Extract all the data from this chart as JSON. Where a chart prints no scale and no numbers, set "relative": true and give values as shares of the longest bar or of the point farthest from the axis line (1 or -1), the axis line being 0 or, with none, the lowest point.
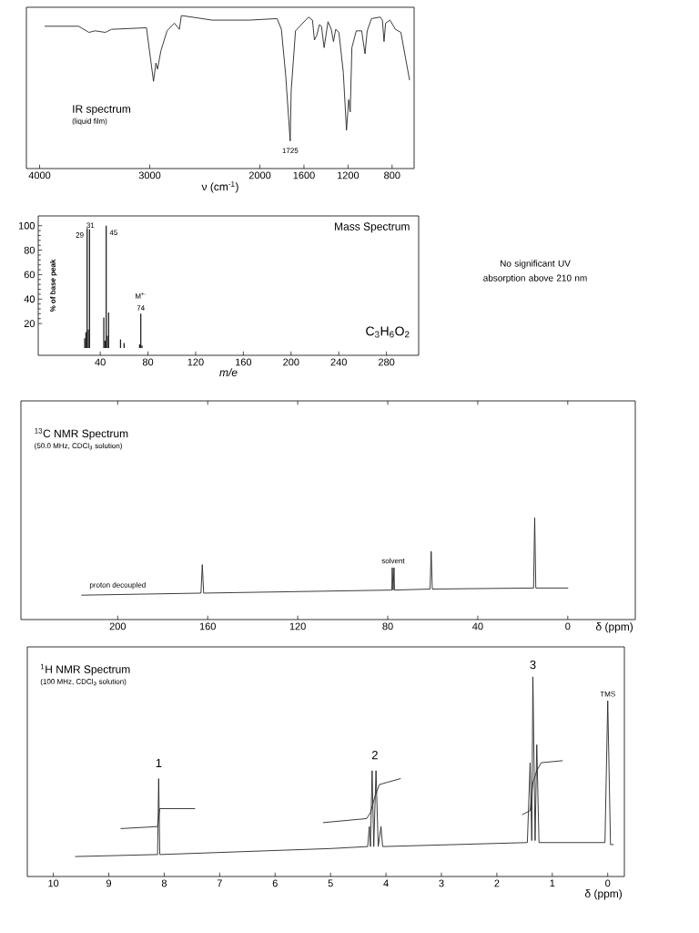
{
  "chart_data": [
    {
      "type": "line",
      "title": "IR spectrum",
      "subtitle": "(liquid film)",
      "xlabel": "ν (cm$^{-1}$)",
      "relative": true,
      "xlim": [
        4120,
        600
      ],
      "xticks": [
        4000,
        3000,
        2000,
        1600,
        1200,
        800
      ],
      "marker": "none",
      "line_style": "solid",
      "color": "#262626",
      "x": [
        3951,
        3646,
        3552,
        3496,
        3403,
        3347,
        3030,
        2966,
        2944,
        2929,
        2899,
        2843,
        2776,
        2731,
        2713,
        2433,
        2097,
        1844,
        1805,
        1766,
        1725,
        1716,
        1677,
        1559,
        1523,
        1505,
        1484,
        1460,
        1441,
        1417,
        1382,
        1352,
        1332,
        1312,
        1283,
        1243,
        1214,
        1194,
        1180,
        1165,
        1125,
        1076,
        1046,
        1026,
        987,
        908,
        888,
        873,
        859,
        819,
        770,
        720,
        642
      ],
      "values": [
        0.93,
        0.93,
        0.89,
        0.9,
        0.89,
        0.91,
        0.92,
        0.57,
        0.69,
        0.65,
        0.77,
        0.9,
        0.95,
        0.91,
        1,
        0.97,
        0.97,
        0.98,
        0.91,
        0.61,
        0.18,
        0.51,
        0.9,
        0.99,
        0.97,
        0.84,
        0.87,
        0.94,
        0.93,
        0.79,
        0.96,
        0.91,
        0.83,
        0.91,
        0.89,
        0.63,
        0.25,
        0.45,
        0.37,
        0.79,
        0.9,
        0.9,
        0.75,
        0.9,
        0.98,
        0.99,
        0.97,
        0.83,
        0.95,
        0.97,
        0.91,
        0.89,
        0.58
      ],
      "annotations": [
        {
          "text": "1725",
          "x": 1725,
          "y": 0.18
        }
      ]
    },
    {
      "type": "bar",
      "title": "Mass Spectrum",
      "xlabel": "m/e",
      "ylabel": "% of base peak",
      "xlim": [
        -12,
        307
      ],
      "ylim": [
        -6,
        108
      ],
      "xticks": [
        40,
        80,
        120,
        160,
        200,
        240,
        280
      ],
      "yticks": [
        20,
        40,
        60,
        80,
        100
      ],
      "color": "#1a1a1a",
      "x": [
        27,
        28,
        29,
        30,
        31,
        43,
        44,
        45,
        46,
        47,
        57,
        60,
        73,
        74,
        75
      ],
      "values": [
        8,
        13,
        98,
        15,
        97,
        25,
        6,
        100,
        10,
        29,
        7,
        4,
        3,
        28,
        2
      ],
      "annotations": [
        {
          "text": "29",
          "x": 29,
          "y": 98
        },
        {
          "text": "31",
          "x": 31,
          "y": 97
        },
        {
          "text": "45",
          "x": 45,
          "y": 100
        },
        {
          "text": "M$^{+·}$",
          "x": 74,
          "y": 28
        },
        {
          "text": "74",
          "x": 74,
          "y": 28
        },
        "C$_{3}$H$_{6}$O$_{2}$"
      ]
    },
    {
      "type": "other",
      "annotations": [
        "No significant UV absorption above 210 nm"
      ]
    },
    {
      "type": "line",
      "title": "$^{13}$C NMR Spectrum",
      "subtitle": "(50.0 MHz, CDCl$_{3}$ solution)",
      "xlabel": "δ (ppm)",
      "relative": true,
      "xlim": [
        243,
        -30
      ],
      "xticks": [
        200,
        160,
        120,
        80,
        40,
        0
      ],
      "marker": "none",
      "line_style": "solid",
      "color": "#262626",
      "x": [
        216,
        163,
        162.4,
        161.8,
        78.2,
        78,
        77.6,
        77.2,
        77,
        61.2,
        60.7,
        60.2,
        15.2,
        14.7,
        14.2,
        0
      ],
      "values": [
        0.24,
        0.26,
        0.54,
        0.26,
        0.29,
        0.51,
        0.29,
        0.51,
        0.29,
        0.3,
        0.67,
        0.3,
        0.31,
        1,
        0.31,
        0.31
      ],
      "annotations": [
        {
          "text": "solvent",
          "x": 77.6,
          "y": 0.51
        },
        {
          "text": "proton decoupled",
          "x": 200,
          "y": 0.25
        }
      ]
    },
    {
      "type": "line",
      "title": "$^{1}$H NMR Spectrum",
      "subtitle": "(100 MHz, CDCl$_{3}$ solution)",
      "xlabel": "δ (ppm)",
      "relative": true,
      "xlim": [
        10.47,
        -0.3
      ],
      "xticks": [
        10,
        9,
        8,
        7,
        6,
        5,
        4,
        3,
        2,
        1,
        0
      ],
      "marker": "none",
      "line_style": "solid",
      "series": [
        {
          "color": "#262626",
          "x": [
            9.6,
            8.14,
            8.12,
            8.1,
            8.08,
            5.0,
            4.33,
            4.3,
            4.28,
            4.25,
            4.22,
            4.18,
            4.14,
            4.09,
            4.06,
            1.45,
            1.4,
            1.37,
            1.35,
            1.31,
            1.28,
            1.24,
            0.05,
            0,
            -0.05,
            -0.1
          ],
          "values": [
            0.1,
            0.11,
            0.11,
            0.49,
            0.11,
            0.14,
            0.15,
            0.25,
            0.15,
            0.53,
            0.15,
            0.53,
            0.15,
            0.25,
            0.15,
            0.17,
            0.57,
            0.18,
            1,
            0.18,
            0.66,
            0.17,
            0.17,
            0.88,
            0.16,
            0.16
          ]
        },
        {
          "color": "#262626",
          "x": [
            8.78,
            8.12,
            8.08,
            7.45
          ],
          "values": [
            0.24,
            0.25,
            0.34,
            0.34
          ]
        },
        {
          "color": "#262626",
          "x": [
            5.13,
            4.35,
            4.28,
            4.2,
            4.12,
            4.0,
            3.74
          ],
          "values": [
            0.27,
            0.29,
            0.32,
            0.4,
            0.46,
            0.47,
            0.49
          ]
        },
        {
          "color": "#262626",
          "x": [
            1.54,
            1.4,
            1.35,
            1.28,
            1.2,
            0.82
          ],
          "values": [
            0.31,
            0.33,
            0.47,
            0.53,
            0.57,
            0.58
          ]
        }
      ],
      "annotations": [
        {
          "text": "1",
          "x": 8.1,
          "y": 0.49
        },
        {
          "text": "2",
          "x": 4.2,
          "y": 0.53
        },
        {
          "text": "3",
          "x": 1.35,
          "y": 1
        },
        {
          "text": "TMS",
          "x": 0,
          "y": 0.88
        }
      ]
    }
  ]
}
